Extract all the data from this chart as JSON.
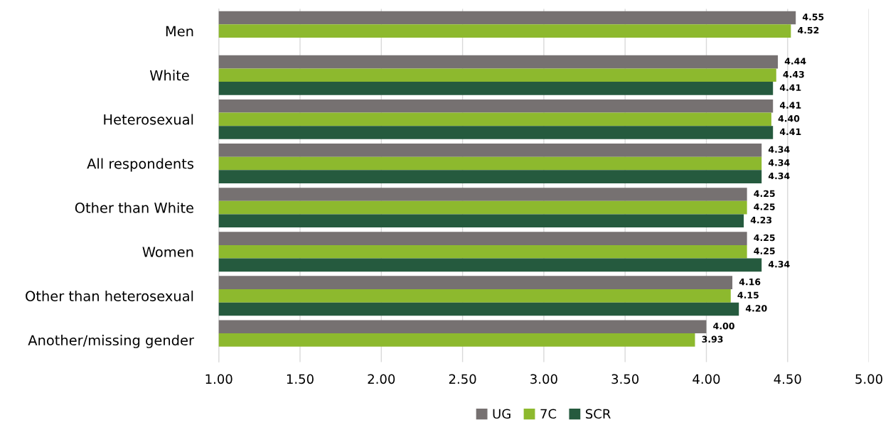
{
  "chart_data": {
    "type": "bar",
    "orientation": "horizontal",
    "categories": [
      "Men",
      "White ",
      "Heterosexual",
      "All respondents",
      "Other than White",
      "Women",
      "Other than heterosexual",
      "Another/missing gender"
    ],
    "series": [
      {
        "name": "UG",
        "color": "#767171",
        "values": [
          4.55,
          4.44,
          4.41,
          4.34,
          4.25,
          4.25,
          4.16,
          4.0
        ],
        "value_labels": [
          "4.55",
          "4.44",
          "4.41",
          "4.34",
          "4.25",
          "4.25",
          "4.16",
          "4.00"
        ]
      },
      {
        "name": "7C",
        "color": "#8db92e",
        "values": [
          4.52,
          4.43,
          4.4,
          4.34,
          4.25,
          4.25,
          4.15,
          3.93
        ],
        "value_labels": [
          "4.52",
          "4.43",
          "4.40",
          "4.34",
          "4.25",
          "4.25",
          "4.15",
          "3.93"
        ]
      },
      {
        "name": "SCR",
        "color": "#255a3e",
        "values": [
          null,
          4.41,
          4.41,
          4.34,
          4.23,
          4.34,
          4.2,
          null
        ],
        "value_labels": [
          null,
          "4.41",
          "4.41",
          "4.34",
          "4.23",
          "4.34",
          "4.20",
          null
        ]
      }
    ],
    "xlim": [
      1,
      5
    ],
    "xticks": [
      {
        "value": 1,
        "label": "1.00"
      },
      {
        "value": 1.5,
        "label": "1.50"
      },
      {
        "value": 2,
        "label": "2.00"
      },
      {
        "value": 2.5,
        "label": "2.50"
      },
      {
        "value": 3,
        "label": "3.00"
      },
      {
        "value": 3.5,
        "label": "3.50"
      },
      {
        "value": 4,
        "label": "4.00"
      },
      {
        "value": 4.5,
        "label": "4.50"
      },
      {
        "value": 5,
        "label": "5.00"
      }
    ],
    "grid": "x",
    "legend": "bottom"
  }
}
